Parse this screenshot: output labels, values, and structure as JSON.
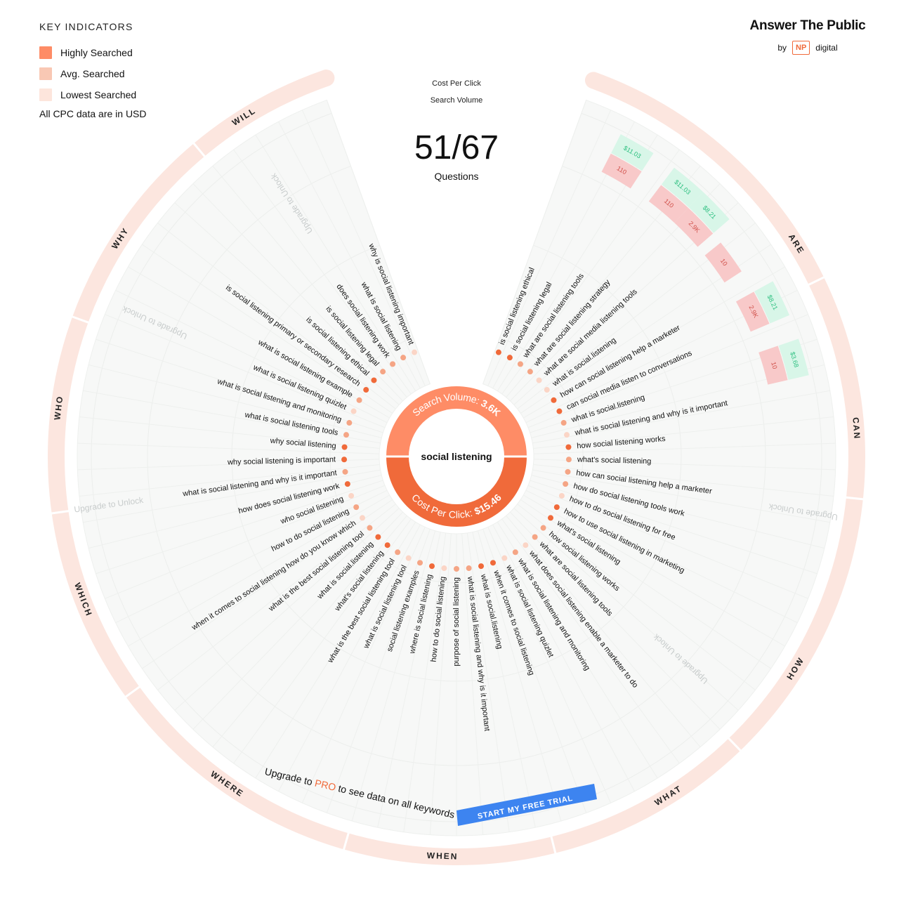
{
  "legend": {
    "title": "KEY INDICATORS",
    "items": [
      {
        "label": "Highly Searched",
        "color": "#fe8c66"
      },
      {
        "label": "Avg. Searched",
        "color": "#f9c8b4"
      },
      {
        "label": "Lowest Searched",
        "color": "#fde5dc"
      }
    ],
    "note": "All CPC data are in USD"
  },
  "brand": {
    "name": "Answer The Public",
    "by": "by",
    "np": "NP",
    "digital": "digital"
  },
  "top_labels": {
    "cpc": "Cost Per Click",
    "volume": "Search Volume"
  },
  "counter": {
    "value": "51/67",
    "label": "Questions"
  },
  "center": {
    "keyword": "social listening",
    "volume_label": "Search Volume:",
    "volume_value": "3.6K",
    "cpc_label": "Cost Per Click:",
    "cpc_value": "$15.46"
  },
  "colors": {
    "highly": "#fe8c66",
    "avg": "#f9c8b4",
    "lowest": "#fde5dc",
    "accent": "#f06a3a",
    "cpc_text": "#2bbf7f",
    "cpc_bg": "#d8f6e8",
    "vol_bg": "#f8c9c9",
    "vol_text": "#d0504a",
    "cta": "#3d84f0"
  },
  "upgrade_text": "Upgrade to Unlock",
  "cta": {
    "prefix": "Upgrade to",
    "pro": "PRO",
    "suffix": "to see data on all keywords",
    "button": "START MY FREE TRIAL"
  },
  "sections": [
    {
      "label": "ARE"
    },
    {
      "label": "CAN"
    },
    {
      "label": "HOW"
    },
    {
      "label": "WHAT"
    },
    {
      "label": "WHEN"
    },
    {
      "label": "WHERE"
    },
    {
      "label": "WHICH"
    },
    {
      "label": "WHO"
    },
    {
      "label": "WHY"
    },
    {
      "label": "WILL"
    }
  ],
  "questions": [
    {
      "text": "is social listening ethical",
      "level": "high"
    },
    {
      "text": "is social listening legal",
      "level": "high"
    },
    {
      "text": "what are social listening tools",
      "level": "avg"
    },
    {
      "text": "what are social listening strategy",
      "level": "avg"
    },
    {
      "text": "what are social media listening tools",
      "level": "low"
    },
    {
      "text": "what is social.listening",
      "level": "low"
    },
    {
      "text": "how can social listening help a marketer",
      "level": "high"
    },
    {
      "text": "can social media listen to conversations",
      "level": "high"
    },
    {
      "text": "what is social.listening",
      "level": "avg"
    },
    {
      "text": "what is social listening and why is it important",
      "level": "low"
    },
    {
      "text": "how social listening works",
      "level": "high"
    },
    {
      "text": "what's social listening",
      "level": "avg"
    },
    {
      "text": "how can social listening help a marketer",
      "level": "avg"
    },
    {
      "text": "how do social listening tools work",
      "level": "avg"
    },
    {
      "text": "how to do social listening for free",
      "level": "low"
    },
    {
      "text": "how to use social listening in marketing",
      "level": "high"
    },
    {
      "text": "what's social listening",
      "level": "high"
    },
    {
      "text": "how social listening works",
      "level": "avg"
    },
    {
      "text": "what are social listening tools",
      "level": "avg"
    },
    {
      "text": "what does social listening enable a marketer to do",
      "level": "low"
    },
    {
      "text": "what is social listening and monitoring",
      "level": "avg"
    },
    {
      "text": "what is social listening quizlet",
      "level": "low"
    },
    {
      "text": "when it comes to social listening",
      "level": "high"
    },
    {
      "text": "what is social.listening",
      "level": "high"
    },
    {
      "text": "what is social listening and why is it important",
      "level": "avg"
    },
    {
      "text": "purpose of social listening",
      "level": "avg"
    },
    {
      "text": "how to do social listening",
      "level": "low"
    },
    {
      "text": "where is social listening",
      "level": "high"
    },
    {
      "text": "social listening examples",
      "level": "avg"
    },
    {
      "text": "what is social listening tool",
      "level": "low"
    },
    {
      "text": "what is the best social listening tool",
      "level": "avg"
    },
    {
      "text": "what's social listening",
      "level": "high"
    },
    {
      "text": "what is social.listening",
      "level": "high"
    },
    {
      "text": "what is the best social listening tool",
      "level": "avg"
    },
    {
      "text": "when it comes to social listening how do you know which",
      "level": "low"
    },
    {
      "text": "how to do social listening",
      "level": "avg"
    },
    {
      "text": "who social listening",
      "level": "low"
    },
    {
      "text": "how does social listening work",
      "level": "high"
    },
    {
      "text": "what is social listening and why is it important",
      "level": "avg"
    },
    {
      "text": "why social listening is important",
      "level": "high"
    },
    {
      "text": "why social listening",
      "level": "high"
    },
    {
      "text": "what is social listening tools",
      "level": "avg"
    },
    {
      "text": "what is social listening and monitoring",
      "level": "avg"
    },
    {
      "text": "what is social listening quizlet",
      "level": "low"
    },
    {
      "text": "what is social listening example",
      "level": "avg"
    },
    {
      "text": "is social listening primary or secondary research",
      "level": "high"
    },
    {
      "text": "is social listening ethical",
      "level": "high"
    },
    {
      "text": "is social listening legal",
      "level": "avg"
    },
    {
      "text": "does social listening work",
      "level": "avg"
    },
    {
      "text": "what is social listening",
      "level": "avg"
    },
    {
      "text": "why is social listening important",
      "level": "low"
    }
  ],
  "metrics": [
    {
      "cpc": "$11.03",
      "volume": "110"
    },
    {
      "cpc": "$11.03",
      "volume": "110"
    },
    {
      "cpc": "$8.21",
      "volume": "2.9K"
    },
    {
      "cpc": "",
      "volume": "10"
    },
    {
      "cpc": "$8.21",
      "volume": "2.9K"
    },
    {
      "cpc": "$3.68",
      "volume": "10"
    }
  ]
}
